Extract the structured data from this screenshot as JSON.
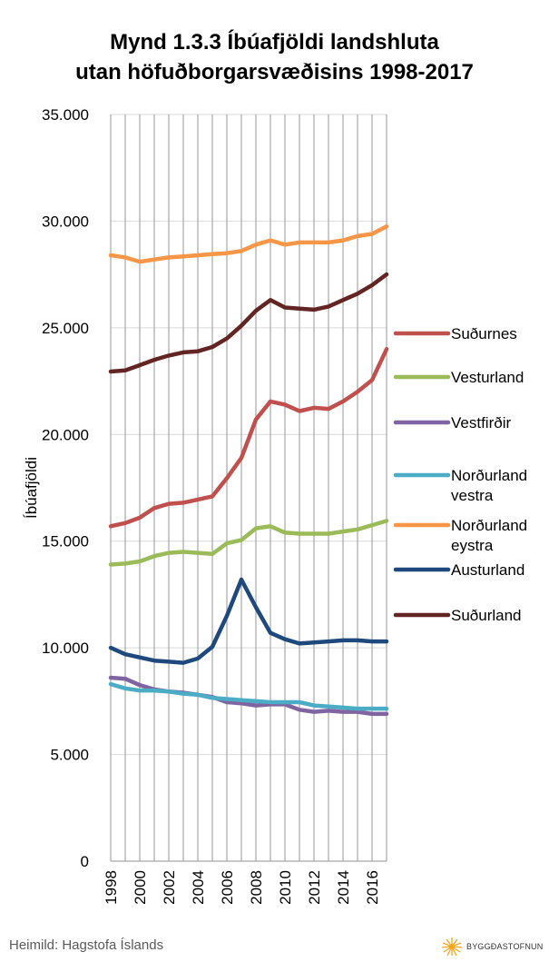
{
  "chart_data": {
    "type": "line",
    "title": [
      "Mynd 1.3.3  Íbúafjöldi landshluta",
      "utan höfuðborgarsvæðisins 1998-2017"
    ],
    "ylabel": "Íbúafjöldi",
    "xlabel": "",
    "ylim": [
      0,
      35000
    ],
    "yticks": [
      0,
      5000,
      10000,
      15000,
      20000,
      25000,
      30000,
      35000
    ],
    "ytick_labels": [
      "0",
      "5.000",
      "10.000",
      "15.000",
      "20.000",
      "25.000",
      "30.000",
      "35.000"
    ],
    "x": [
      1998,
      1999,
      2000,
      2001,
      2002,
      2003,
      2004,
      2005,
      2006,
      2007,
      2008,
      2009,
      2010,
      2011,
      2012,
      2013,
      2014,
      2015,
      2016,
      2017
    ],
    "xtick_labels": [
      "1998",
      "2000",
      "2002",
      "2004",
      "2006",
      "2008",
      "2010",
      "2012",
      "2014",
      "2016"
    ],
    "grid": "vertical",
    "legend_position": "right",
    "series": [
      {
        "name": "Suðurnes",
        "color": "#C0504D",
        "values": [
          15700,
          15850,
          16100,
          16550,
          16750,
          16800,
          16950,
          17100,
          17950,
          18900,
          20700,
          21550,
          21400,
          21100,
          21250,
          21200,
          21550,
          22000,
          22550,
          24000
        ]
      },
      {
        "name": "Vesturland",
        "color": "#9BBB59",
        "values": [
          13900,
          13950,
          14050,
          14300,
          14450,
          14500,
          14450,
          14400,
          14900,
          15050,
          15600,
          15700,
          15400,
          15350,
          15350,
          15350,
          15450,
          15550,
          15750,
          15950
        ]
      },
      {
        "name": "Vestfirðir",
        "color": "#8064A2",
        "values": [
          8600,
          8550,
          8250,
          8050,
          7950,
          7900,
          7800,
          7700,
          7450,
          7400,
          7300,
          7350,
          7350,
          7100,
          7000,
          7050,
          7000,
          7000,
          6900,
          6900
        ]
      },
      {
        "name": "Norðurland vestra",
        "color": "#4BACC6",
        "values": [
          8300,
          8100,
          8000,
          8000,
          7950,
          7850,
          7800,
          7650,
          7600,
          7550,
          7500,
          7450,
          7450,
          7450,
          7300,
          7250,
          7200,
          7150,
          7150,
          7150
        ]
      },
      {
        "name": "Norðurland eystra",
        "color": "#F79646",
        "values": [
          28400,
          28300,
          28100,
          28200,
          28300,
          28350,
          28400,
          28450,
          28500,
          28600,
          28900,
          29100,
          28900,
          29000,
          29000,
          29000,
          29100,
          29300,
          29400,
          29750
        ]
      },
      {
        "name": "Austurland",
        "color": "#1F497D",
        "values": [
          10000,
          9700,
          9550,
          9400,
          9350,
          9300,
          9500,
          10050,
          11500,
          13200,
          11900,
          10700,
          10400,
          10200,
          10250,
          10300,
          10350,
          10350,
          10300,
          10300
        ]
      },
      {
        "name": "Suðurland",
        "color": "#632523",
        "values": [
          22950,
          23000,
          23250,
          23500,
          23700,
          23850,
          23900,
          24100,
          24500,
          25100,
          25800,
          26300,
          25950,
          25900,
          25850,
          26000,
          26300,
          26600,
          27000,
          27500
        ]
      }
    ]
  },
  "source": "Heimild: Hagstofa Íslands",
  "logo_text": "BYGGÐASTOFNUN"
}
